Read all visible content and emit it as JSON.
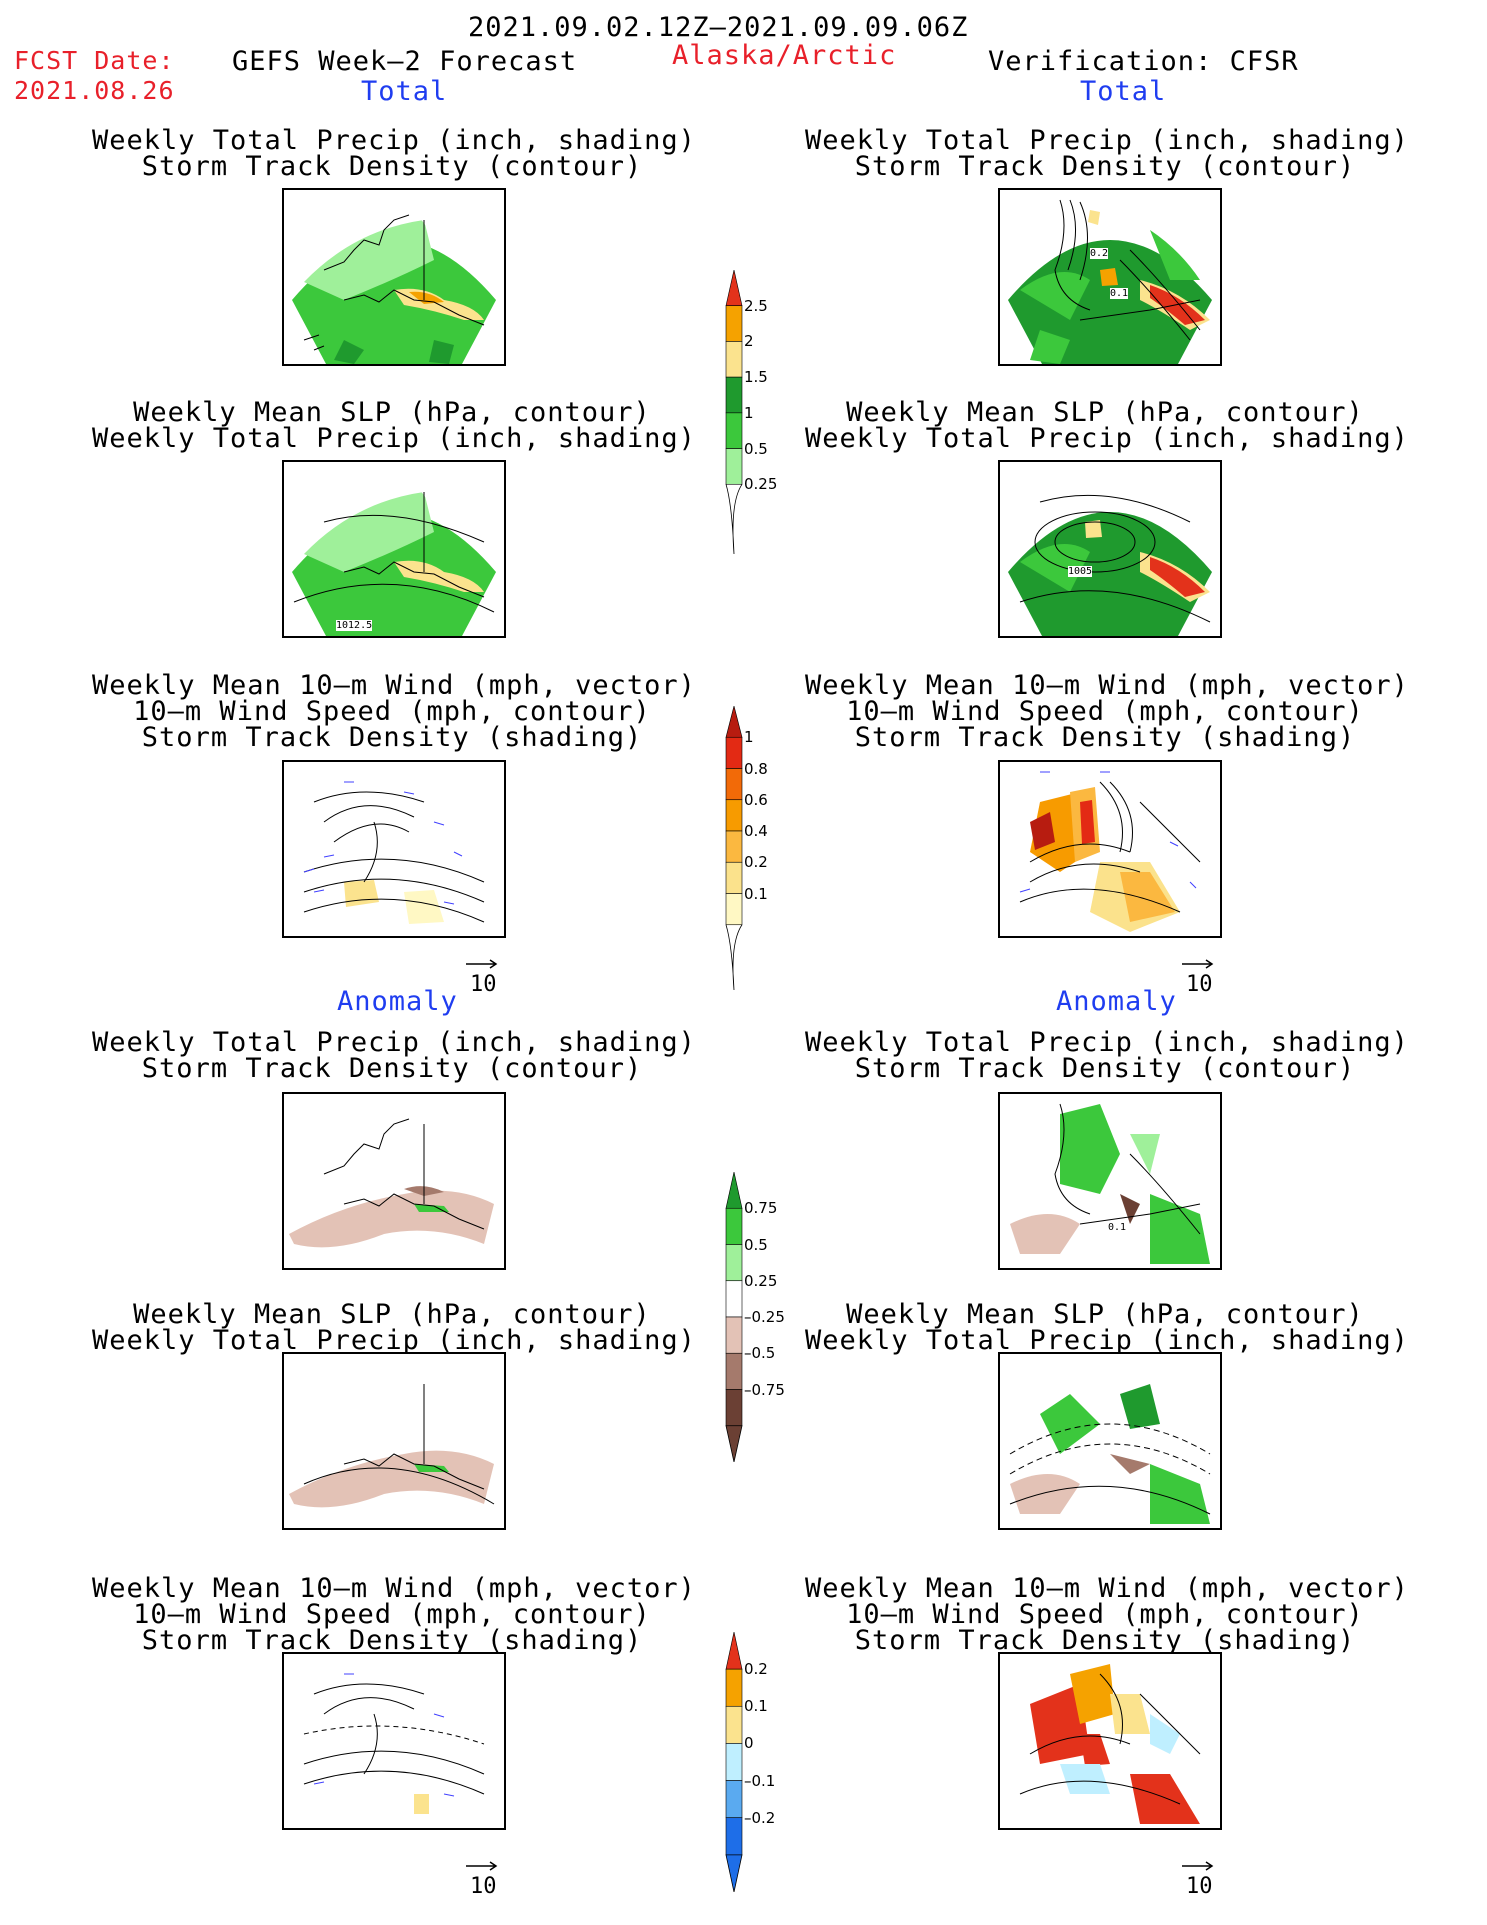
{
  "header": {
    "period": "2021.09.02.12Z–2021.09.09.06Z",
    "fcst_label": "FCST Date:",
    "fcst_date": "2021.08.26",
    "left_title": "GEFS Week–2 Forecast",
    "region": "Alaska/Arctic",
    "right_title": "Verification: CFSR"
  },
  "sections": {
    "total": "Total",
    "anomaly": "Anomaly"
  },
  "titles": {
    "precip": [
      "Weekly Total Precip (inch, shading)",
      "Storm Track Density (contour)"
    ],
    "slp": [
      "Weekly Mean SLP (hPa, contour)",
      "Weekly Total Precip (inch, shading)"
    ],
    "wind": [
      "Weekly Mean 10–m Wind (mph, vector)",
      "10–m Wind Speed (mph, contour)",
      "Storm Track Density (shading)"
    ]
  },
  "contour_labels": {
    "fcst_slp": "1012.5",
    "obs_precip_a": "0.2",
    "obs_precip_b": "0.1",
    "obs_slp": "1005",
    "obs_anom_precip": "0.1"
  },
  "vector_ref": "10",
  "colorbars": {
    "precip_total": {
      "labels": [
        "2.5",
        "2",
        "1.5",
        "1",
        "0.5",
        "0.25"
      ],
      "colors": [
        "#e3321b",
        "#f5a200",
        "#fbe38e",
        "#1f9a2e",
        "#3cc83c",
        "#9ff09a"
      ]
    },
    "track_total": {
      "labels": [
        "1",
        "0.8",
        "0.6",
        "0.4",
        "0.2",
        "0.1"
      ],
      "colors": [
        "#b71c10",
        "#e32a14",
        "#f26a08",
        "#f79b00",
        "#fbb840",
        "#fbe28c",
        "#fff8c4"
      ]
    },
    "precip_anom": {
      "labels": [
        "0.75",
        "0.5",
        "0.25",
        "–0.25",
        "–0.5",
        "–0.75"
      ],
      "colors": [
        "#1f9a2e",
        "#3cc83c",
        "#9ff09a",
        "#ffffff",
        "#e3c2b6",
        "#a57a6c",
        "#6b4034"
      ]
    },
    "track_anom": {
      "labels": [
        "0.2",
        "0.1",
        "0",
        "–0.1",
        "–0.2"
      ],
      "colors": [
        "#e3321b",
        "#f5a200",
        "#fbe38e",
        "#bfefff",
        "#5aaaf0",
        "#1e6ee8"
      ]
    }
  }
}
